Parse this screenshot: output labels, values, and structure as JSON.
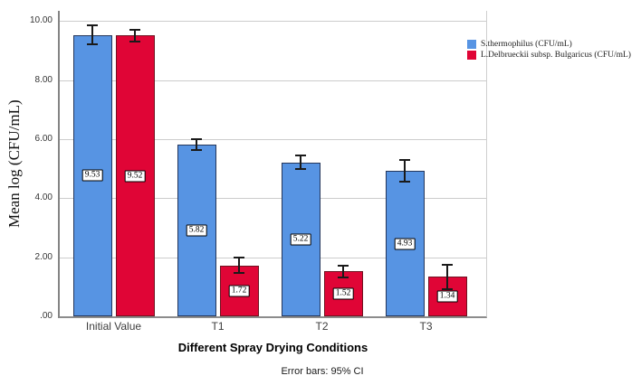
{
  "chart_data": {
    "type": "bar",
    "title": "",
    "xlabel": "Different Spray Drying Conditions",
    "ylabel": "Mean log (CFU/mL)",
    "footnote": "Error bars: 95% CI",
    "categories": [
      "Initial Value",
      "T1",
      "T2",
      "T3"
    ],
    "series": [
      {
        "name": "S.thermophilus (CFU/mL)",
        "color": "#5794e3",
        "border_color": "#24365b",
        "values": [
          9.53,
          5.82,
          5.22,
          4.93
        ],
        "ci_halfwidth": [
          0.35,
          0.22,
          0.26,
          0.4
        ]
      },
      {
        "name": "L.Delbrueckii subsp. Bulgaricus (CFU/mL)",
        "color": "#e00536",
        "border_color": "#6f1220",
        "values": [
          9.52,
          1.72,
          1.52,
          1.34
        ],
        "ci_halfwidth": [
          0.23,
          0.29,
          0.24,
          0.44
        ]
      }
    ],
    "yticks": [
      {
        "value": 10,
        "label": "10.00"
      },
      {
        "value": 8,
        "label": "8.00"
      },
      {
        "value": 6,
        "label": "6.00"
      },
      {
        "value": 4,
        "label": "4.00"
      },
      {
        "value": 2,
        "label": "2.00"
      },
      {
        "value": 0,
        "label": ".00"
      }
    ],
    "ylim": [
      0,
      10.35
    ],
    "grid": true,
    "legend_position": "top-right",
    "error_bar_color": "#1a1a1a"
  }
}
